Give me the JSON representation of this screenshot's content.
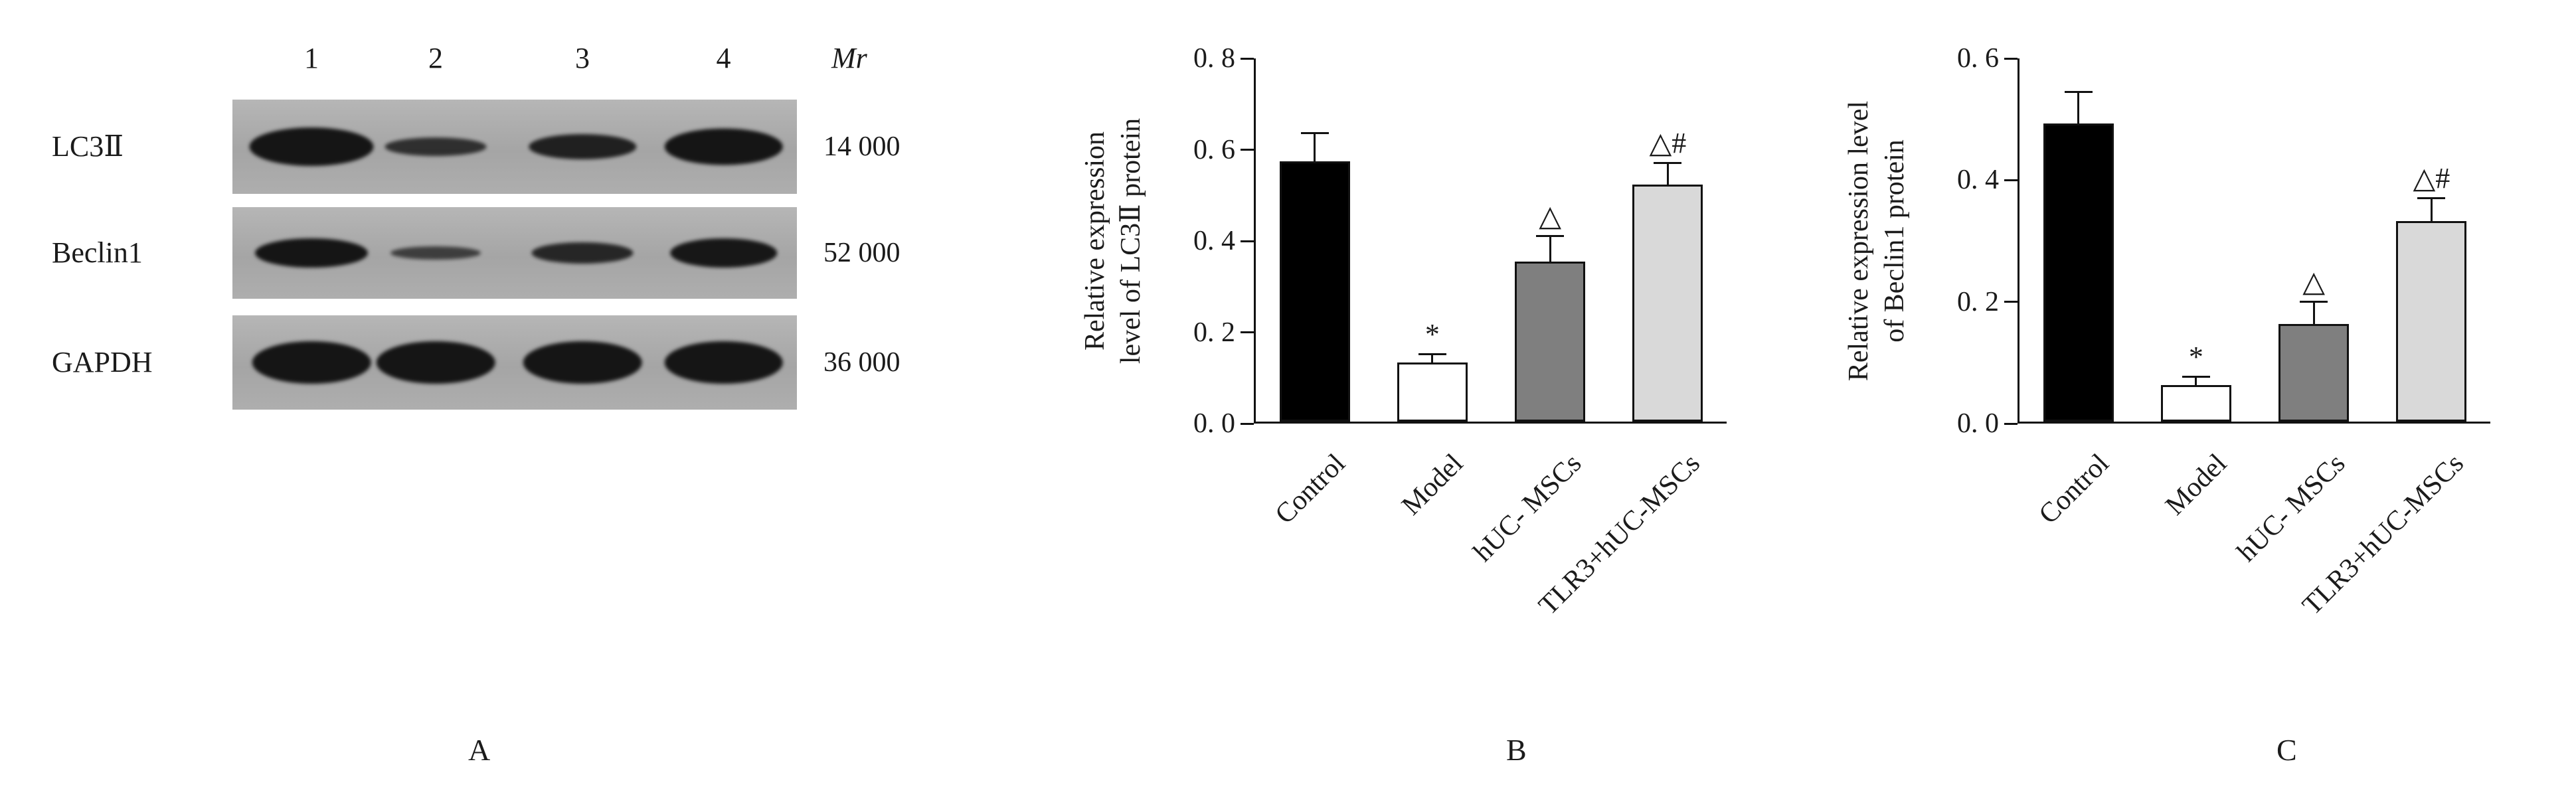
{
  "figure": {
    "panel_labels": [
      "A",
      "B",
      "C"
    ]
  },
  "blot": {
    "mr_label": "Mr",
    "lane_labels": [
      "1",
      "2",
      "3",
      "4"
    ],
    "rows": [
      {
        "protein": "LC3Ⅱ",
        "mr": "14 000",
        "bands": [
          {
            "w": 22,
            "h": 58,
            "o": 1
          },
          {
            "w": 18,
            "h": 28,
            "o": 0.82
          },
          {
            "w": 19,
            "h": 38,
            "o": 0.92
          },
          {
            "w": 21,
            "h": 55,
            "o": 1
          }
        ]
      },
      {
        "protein": "Beclin1",
        "mr": "52 000",
        "bands": [
          {
            "w": 20,
            "h": 44,
            "o": 1
          },
          {
            "w": 16,
            "h": 20,
            "o": 0.72
          },
          {
            "w": 18,
            "h": 32,
            "o": 0.88
          },
          {
            "w": 19,
            "h": 44,
            "o": 0.98
          }
        ]
      },
      {
        "protein": "GAPDH",
        "mr": "36 000",
        "bands": [
          {
            "w": 21,
            "h": 64,
            "o": 1
          },
          {
            "w": 21,
            "h": 64,
            "o": 1
          },
          {
            "w": 21,
            "h": 64,
            "o": 1
          },
          {
            "w": 21,
            "h": 64,
            "o": 1
          }
        ]
      }
    ]
  },
  "chart_data": [
    {
      "type": "bar",
      "panel": "B",
      "ylabel_lines": [
        "Relative expression",
        "level of LC3Ⅱ protein"
      ],
      "categories": [
        "Control",
        "Model",
        "hUC- MSCs",
        "TLR3+hUC-MSCs"
      ],
      "values": [
        0.57,
        0.13,
        0.35,
        0.52
      ],
      "errors": [
        0.06,
        0.015,
        0.055,
        0.045
      ],
      "annotations": [
        "",
        "*",
        "△",
        "△#"
      ],
      "bar_colors": [
        "#000000",
        "#ffffff",
        "#7f7f7f",
        "#d9d9d9"
      ],
      "ylim": [
        0,
        0.8
      ],
      "ytick_values": [
        0,
        0.2,
        0.4,
        0.6,
        0.8
      ],
      "ytick_labels": [
        "0. 0",
        "0. 2",
        "0. 4",
        "0. 6",
        "0. 8"
      ],
      "grid": false,
      "legend": "none"
    },
    {
      "type": "bar",
      "panel": "C",
      "ylabel_lines": [
        "Relative expression level",
        "of Beclin1 protein"
      ],
      "categories": [
        "Control",
        "Model",
        "hUC- MSCs",
        "TLR3+hUC-MSCs"
      ],
      "values": [
        0.49,
        0.06,
        0.16,
        0.33
      ],
      "errors": [
        0.05,
        0.012,
        0.035,
        0.035
      ],
      "annotations": [
        "",
        "*",
        "△",
        "△#"
      ],
      "bar_colors": [
        "#000000",
        "#ffffff",
        "#7f7f7f",
        "#d9d9d9"
      ],
      "ylim": [
        0,
        0.6
      ],
      "ytick_values": [
        0,
        0.2,
        0.4,
        0.6
      ],
      "ytick_labels": [
        "0. 0",
        "0. 2",
        "0. 4",
        "0. 6"
      ],
      "grid": false,
      "legend": "none"
    }
  ]
}
